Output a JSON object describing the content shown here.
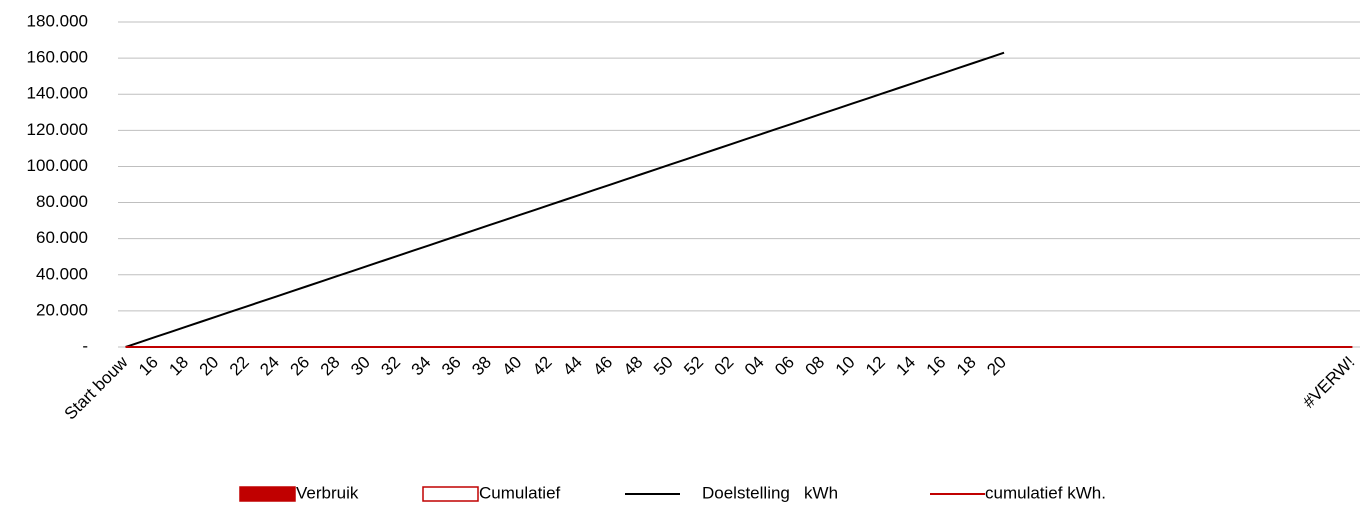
{
  "chart_data": {
    "type": "combo",
    "categories": [
      "Start bouw",
      null,
      "16",
      null,
      "18",
      null,
      "20",
      null,
      "22",
      null,
      "24",
      null,
      "26",
      null,
      "28",
      null,
      "30",
      null,
      "32",
      null,
      "34",
      null,
      "36",
      null,
      "38",
      null,
      "40",
      null,
      "42",
      null,
      "44",
      null,
      "46",
      null,
      "48",
      null,
      "50",
      null,
      "52",
      null,
      "02",
      null,
      "04",
      null,
      "06",
      null,
      "08",
      null,
      "10",
      null,
      "12",
      null,
      "14",
      null,
      "16",
      null,
      "18",
      null,
      "20",
      null,
      null,
      null,
      null,
      null,
      null,
      null,
      null,
      null,
      null,
      null,
      null,
      null,
      null,
      null,
      null,
      null,
      null,
      null,
      null,
      null,
      null,
      "#VERW!"
    ],
    "series": [
      {
        "name": "Verbruik",
        "type": "bar",
        "style": "filled",
        "color": "#c00000",
        "values": [
          0,
          0,
          0,
          0,
          0,
          0,
          0,
          0,
          0,
          0,
          0,
          0,
          0,
          0,
          0,
          0,
          0,
          0,
          0,
          0,
          0,
          0,
          0,
          0,
          0,
          0,
          0,
          0,
          0,
          0,
          0,
          0,
          0,
          0,
          0,
          0,
          0,
          0,
          0,
          0,
          0,
          0,
          0,
          0,
          0,
          0,
          0,
          0,
          0,
          0,
          0,
          0,
          0,
          0,
          0,
          0,
          0,
          0,
          0,
          0,
          0,
          0,
          0,
          0,
          0,
          0,
          0,
          0,
          0,
          0,
          0,
          0,
          0,
          0,
          0,
          0,
          0,
          0,
          0,
          0,
          0,
          0
        ]
      },
      {
        "name": "Cumulatief",
        "type": "bar",
        "style": "outline",
        "color": "#c00000",
        "values": [
          0,
          0,
          0,
          0,
          0,
          0,
          0,
          0,
          0,
          0,
          0,
          0,
          0,
          0,
          0,
          0,
          0,
          0,
          0,
          0,
          0,
          0,
          0,
          0,
          0,
          0,
          0,
          0,
          0,
          0,
          0,
          0,
          0,
          0,
          0,
          0,
          0,
          0,
          0,
          0,
          0,
          0,
          0,
          0,
          0,
          0,
          0,
          0,
          0,
          0,
          0,
          0,
          0,
          0,
          0,
          0,
          0,
          0,
          0,
          0,
          0,
          0,
          0,
          0,
          0,
          0,
          0,
          0,
          0,
          0,
          0,
          0,
          0,
          0,
          0,
          0,
          0,
          0,
          0,
          0,
          0,
          0
        ]
      },
      {
        "name": "Doelstelling   kWh",
        "type": "line",
        "color": "#000000",
        "values": [
          0,
          2810,
          5620,
          8430,
          11240,
          14050,
          16860,
          19670,
          22480,
          25290,
          28100,
          30910,
          33720,
          36530,
          39340,
          42150,
          44960,
          47770,
          50580,
          53390,
          56200,
          59010,
          61820,
          64630,
          67440,
          70250,
          73060,
          75870,
          78680,
          81490,
          84300,
          87110,
          89920,
          92730,
          95540,
          98350,
          101160,
          103970,
          106780,
          109590,
          112400,
          115210,
          118020,
          120830,
          123640,
          126450,
          129260,
          132070,
          134880,
          137690,
          140500,
          143310,
          146120,
          148930,
          151740,
          154550,
          157360,
          160170,
          162980,
          null,
          null,
          null,
          null,
          null,
          null,
          null,
          null,
          null,
          null,
          null,
          null,
          null,
          null,
          null,
          null,
          null,
          null,
          null,
          null,
          null,
          null,
          null
        ]
      },
      {
        "name": "cumulatief kWh.",
        "type": "line",
        "color": "#c00000",
        "values": [
          0,
          0,
          0,
          0,
          0,
          0,
          0,
          0,
          0,
          0,
          0,
          0,
          0,
          0,
          0,
          0,
          0,
          0,
          0,
          0,
          0,
          0,
          0,
          0,
          0,
          0,
          0,
          0,
          0,
          0,
          0,
          0,
          0,
          0,
          0,
          0,
          0,
          0,
          0,
          0,
          0,
          0,
          0,
          0,
          0,
          0,
          0,
          0,
          0,
          0,
          0,
          0,
          0,
          0,
          0,
          0,
          0,
          0,
          0,
          0,
          0,
          0,
          0,
          0,
          0,
          0,
          0,
          0,
          0,
          0,
          0,
          0,
          0,
          0,
          0,
          0,
          0,
          0,
          0,
          0,
          0,
          0
        ]
      }
    ],
    "ylim": [
      0,
      180000
    ],
    "yticks": [
      {
        "value": 0,
        "label": "-"
      },
      {
        "value": 20000,
        "label": "20.000"
      },
      {
        "value": 40000,
        "label": "40.000"
      },
      {
        "value": 60000,
        "label": "60.000"
      },
      {
        "value": 80000,
        "label": "80.000"
      },
      {
        "value": 100000,
        "label": "100.000"
      },
      {
        "value": 120000,
        "label": "120.000"
      },
      {
        "value": 140000,
        "label": "140.000"
      },
      {
        "value": 160000,
        "label": "160.000"
      },
      {
        "value": 180000,
        "label": "180.000"
      }
    ],
    "grid": true,
    "legend": "bottom"
  }
}
